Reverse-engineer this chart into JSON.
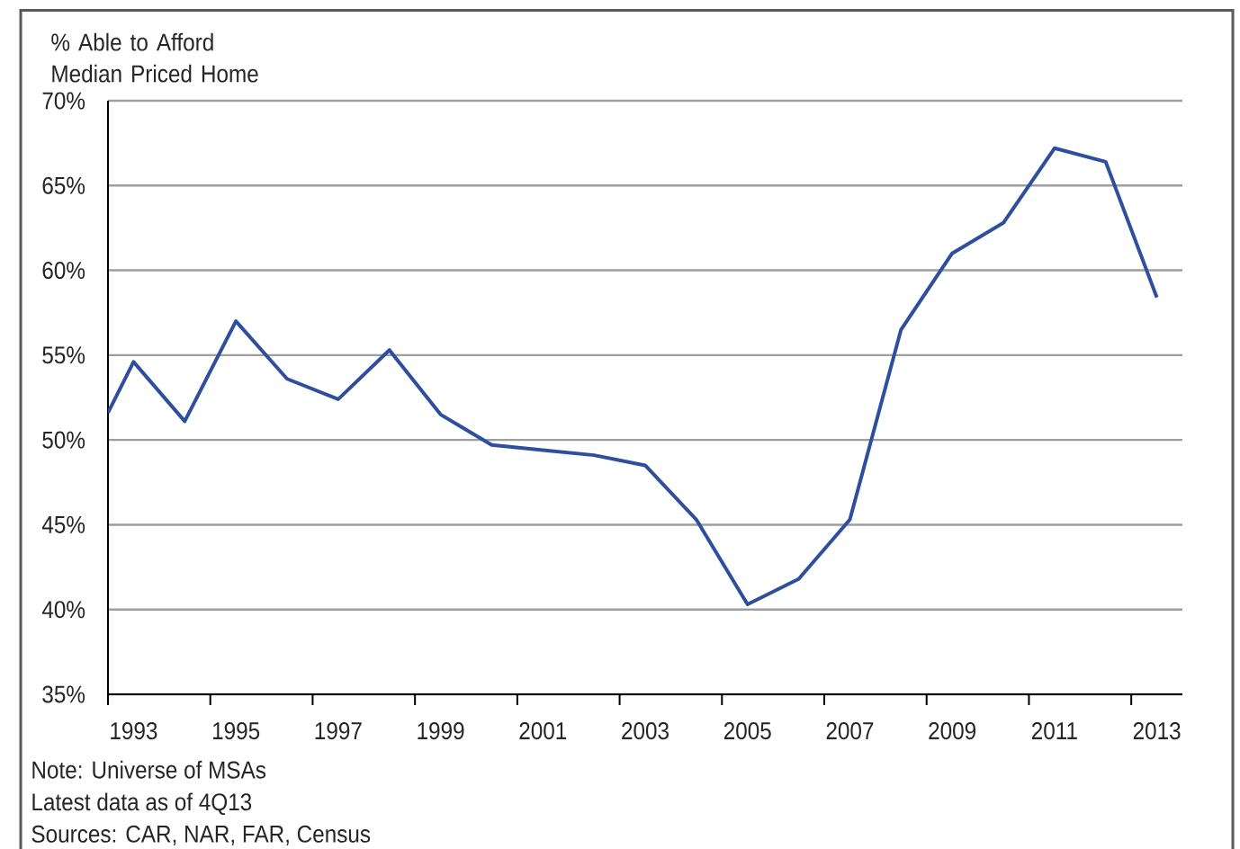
{
  "chart_data": {
    "type": "line",
    "ylabel": "% Able to Afford Median Priced Home",
    "annotations": [
      "Note: Universe of MSAs",
      "Latest data as of 4Q13",
      "Sources: CAR, NAR, FAR, Census"
    ],
    "x": [
      1992.5,
      1993,
      1994,
      1995,
      1996,
      1997,
      1998,
      1999,
      2000,
      2001,
      2002,
      2003,
      2004,
      2005,
      2006,
      2007,
      2008,
      2009,
      2010,
      2011,
      2012,
      2013
    ],
    "series": [
      {
        "color": "#2e4e9e",
        "values": [
          51.6,
          54.6,
          51.1,
          57.0,
          53.6,
          52.4,
          55.3,
          51.5,
          49.7,
          49.4,
          49.1,
          48.5,
          45.3,
          40.3,
          41.8,
          45.3,
          56.5,
          61.0,
          62.8,
          67.2,
          66.4,
          58.4
        ]
      }
    ],
    "xlim": [
      1992.5,
      2013.5
    ],
    "xticks": [
      {
        "value": 1992.5,
        "label": null
      },
      {
        "value": 1993,
        "label": "1993"
      },
      {
        "value": 1994.5,
        "label": null
      },
      {
        "value": 1995,
        "label": "1995"
      },
      {
        "value": 1996.5,
        "label": null
      },
      {
        "value": 1997,
        "label": "1997"
      },
      {
        "value": 1998.5,
        "label": null
      },
      {
        "value": 1999,
        "label": "1999"
      },
      {
        "value": 2000.5,
        "label": null
      },
      {
        "value": 2001,
        "label": "2001"
      },
      {
        "value": 2002.5,
        "label": null
      },
      {
        "value": 2003,
        "label": "2003"
      },
      {
        "value": 2004.5,
        "label": null
      },
      {
        "value": 2005,
        "label": "2005"
      },
      {
        "value": 2006.5,
        "label": null
      },
      {
        "value": 2007,
        "label": "2007"
      },
      {
        "value": 2008.5,
        "label": null
      },
      {
        "value": 2009,
        "label": "2009"
      },
      {
        "value": 2010.5,
        "label": null
      },
      {
        "value": 2011,
        "label": "2011"
      },
      {
        "value": 2012.5,
        "label": null
      },
      {
        "value": 2013,
        "label": "2013"
      }
    ],
    "ylim": [
      35,
      70
    ],
    "yticks": [
      {
        "value": 35,
        "label": "35%"
      },
      {
        "value": 40,
        "label": "40%"
      },
      {
        "value": 45,
        "label": "45%"
      },
      {
        "value": 50,
        "label": "50%"
      },
      {
        "value": 55,
        "label": "55%"
      },
      {
        "value": 60,
        "label": "60%"
      },
      {
        "value": 65,
        "label": "65%"
      },
      {
        "value": 70,
        "label": "70%"
      }
    ],
    "grid": "y"
  }
}
